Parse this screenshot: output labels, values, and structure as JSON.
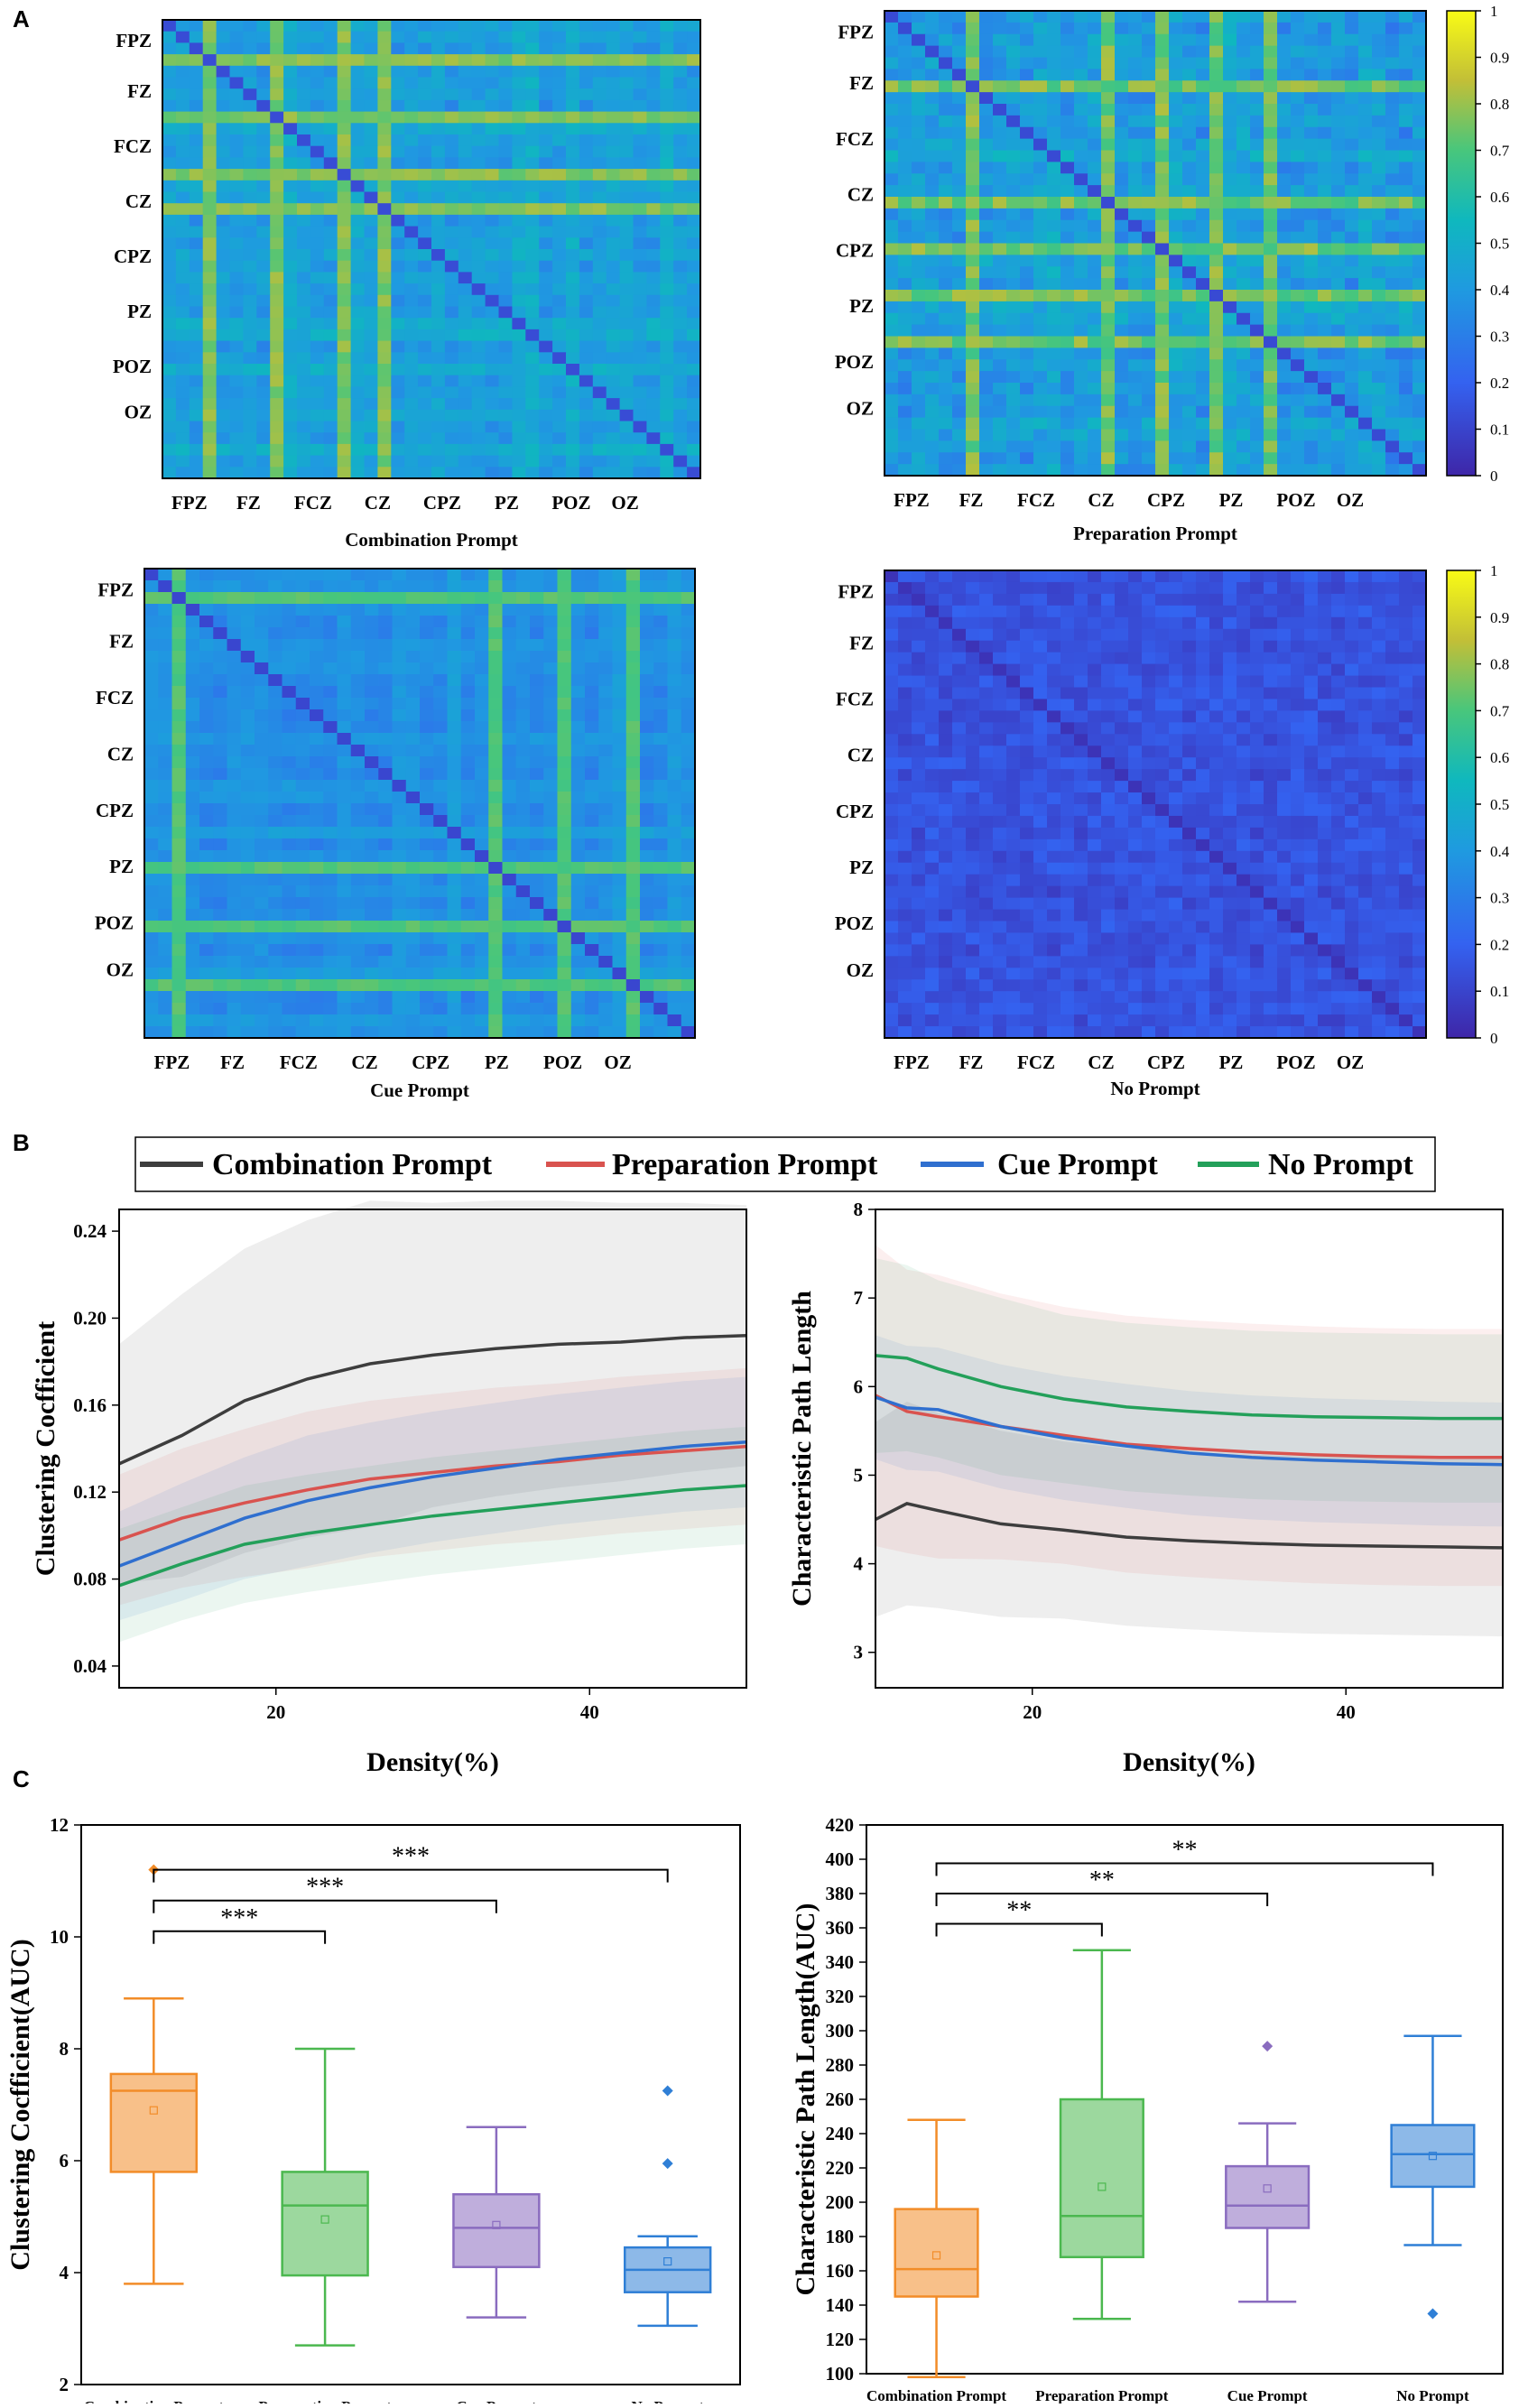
{
  "panels": {
    "a": "A",
    "b": "B",
    "c": "C"
  },
  "colors": {
    "combination": "#3d3d3d",
    "preparation": "#d9534f",
    "cue": "#2f6fcf",
    "none": "#23a05a",
    "box_orange": "#f28c28",
    "box_green": "#4bb84f",
    "box_purple": "#8a6cbf",
    "box_blue": "#2f7fd6"
  },
  "heatmaps": {
    "channel_labels": [
      "FPZ",
      "FZ",
      "FCZ",
      "CZ",
      "CPZ",
      "PZ",
      "POZ",
      "OZ"
    ],
    "colorbar_ticks": [
      "1",
      "0.9",
      "0.8",
      "0.7",
      "0.6",
      "0.5",
      "0.4",
      "0.3",
      "0.2",
      "0.1",
      "0"
    ],
    "titles": [
      "Combination Prompt",
      "Preparation Prompt",
      "Cue Prompt",
      "No Prompt"
    ]
  },
  "chart_data": [
    {
      "type": "line",
      "id": "clustering-density",
      "title": "",
      "xlabel": "Density(%)",
      "ylabel": "Clustering Cocfficient",
      "xlim": [
        10,
        50
      ],
      "ylim": [
        0.03,
        0.25
      ],
      "xticks": [
        "20",
        "40"
      ],
      "yticks": [
        "0.04",
        "0.08",
        "0.12",
        "0.16",
        "0.20",
        "0.24"
      ],
      "x": [
        10,
        14,
        18,
        22,
        26,
        30,
        34,
        38,
        42,
        46,
        50
      ],
      "series": [
        {
          "name": "Combination Prompt",
          "values": [
            0.133,
            0.146,
            0.162,
            0.172,
            0.179,
            0.183,
            0.186,
            0.188,
            0.189,
            0.191,
            0.192
          ],
          "band": [
            0.055,
            0.065,
            0.07,
            0.073,
            0.075,
            0.07,
            0.068,
            0.066,
            0.064,
            0.062,
            0.06
          ]
        },
        {
          "name": "Preparation Prompt",
          "values": [
            0.098,
            0.108,
            0.115,
            0.121,
            0.126,
            0.129,
            0.132,
            0.134,
            0.137,
            0.139,
            0.141
          ],
          "band": [
            0.03,
            0.032,
            0.034,
            0.036,
            0.036,
            0.036,
            0.036,
            0.036,
            0.036,
            0.036,
            0.036
          ]
        },
        {
          "name": "Cue Prompt",
          "values": [
            0.086,
            0.097,
            0.108,
            0.116,
            0.122,
            0.127,
            0.131,
            0.135,
            0.138,
            0.141,
            0.143
          ],
          "band": [
            0.025,
            0.027,
            0.028,
            0.03,
            0.03,
            0.03,
            0.03,
            0.03,
            0.03,
            0.03,
            0.03
          ]
        },
        {
          "name": "No Prompt",
          "values": [
            0.077,
            0.087,
            0.096,
            0.101,
            0.105,
            0.109,
            0.112,
            0.115,
            0.118,
            0.121,
            0.123
          ],
          "band": [
            0.026,
            0.026,
            0.027,
            0.027,
            0.027,
            0.027,
            0.027,
            0.027,
            0.027,
            0.027,
            0.027
          ]
        }
      ]
    },
    {
      "type": "line",
      "id": "path-length-density",
      "title": "",
      "xlabel": "Density(%)",
      "ylabel": "Characteristic Path Length",
      "xlim": [
        10,
        50
      ],
      "ylim": [
        2.6,
        8
      ],
      "xticks": [
        "20",
        "40"
      ],
      "yticks": [
        "3",
        "4",
        "5",
        "6",
        "7",
        "8"
      ],
      "x": [
        10,
        12,
        14,
        18,
        22,
        26,
        30,
        34,
        38,
        42,
        46,
        50
      ],
      "series": [
        {
          "name": "Combination Prompt",
          "values": [
            4.5,
            4.68,
            4.6,
            4.45,
            4.38,
            4.3,
            4.26,
            4.23,
            4.21,
            4.2,
            4.19,
            4.18
          ],
          "band": [
            1.1,
            1.15,
            1.1,
            1.05,
            1.0,
            1.0,
            1.0,
            1.0,
            1.0,
            1.0,
            1.0,
            1.0
          ]
        },
        {
          "name": "Preparation Prompt",
          "values": [
            5.9,
            5.72,
            5.66,
            5.55,
            5.45,
            5.35,
            5.3,
            5.26,
            5.23,
            5.21,
            5.2,
            5.2
          ],
          "band": [
            1.7,
            1.6,
            1.6,
            1.5,
            1.45,
            1.45,
            1.45,
            1.45,
            1.45,
            1.45,
            1.45,
            1.45
          ]
        },
        {
          "name": "Cue Prompt",
          "values": [
            5.88,
            5.76,
            5.74,
            5.55,
            5.42,
            5.33,
            5.25,
            5.2,
            5.17,
            5.15,
            5.13,
            5.12
          ],
          "band": [
            0.7,
            0.7,
            0.7,
            0.7,
            0.7,
            0.7,
            0.7,
            0.7,
            0.7,
            0.7,
            0.7,
            0.7
          ]
        },
        {
          "name": "No Prompt",
          "values": [
            6.35,
            6.32,
            6.2,
            6.0,
            5.86,
            5.77,
            5.72,
            5.68,
            5.66,
            5.65,
            5.64,
            5.64
          ],
          "band": [
            1.1,
            1.05,
            1.0,
            1.0,
            0.95,
            0.95,
            0.95,
            0.95,
            0.95,
            0.95,
            0.95,
            0.95
          ]
        }
      ]
    },
    {
      "type": "box",
      "id": "clustering-auc",
      "title": "",
      "xlabel": "",
      "ylabel": "Clustering Cocfficient(AUC)",
      "ylim": [
        2,
        12
      ],
      "yticks": [
        "2",
        "4",
        "6",
        "8",
        "10",
        "12"
      ],
      "categories": [
        "Combination Prompt",
        "Preparation Prompt",
        "Cue Prompt",
        "No Prompt"
      ],
      "boxes": [
        {
          "min": 3.8,
          "q1": 5.8,
          "median": 7.25,
          "q3": 7.55,
          "max": 8.9,
          "mean": 6.9,
          "outliers": [
            11.2
          ]
        },
        {
          "min": 2.7,
          "q1": 3.95,
          "median": 5.2,
          "q3": 5.8,
          "max": 8.0,
          "mean": 4.95,
          "outliers": []
        },
        {
          "min": 3.2,
          "q1": 4.1,
          "median": 4.8,
          "q3": 5.4,
          "max": 6.6,
          "mean": 4.85,
          "outliers": []
        },
        {
          "min": 3.05,
          "q1": 3.65,
          "median": 4.05,
          "q3": 4.45,
          "max": 4.65,
          "mean": 4.2,
          "outliers": [
            7.25,
            5.95
          ]
        }
      ],
      "significance": [
        {
          "from": 0,
          "to": 1,
          "label": "***"
        },
        {
          "from": 0,
          "to": 2,
          "label": "***"
        },
        {
          "from": 0,
          "to": 3,
          "label": "***"
        }
      ]
    },
    {
      "type": "box",
      "id": "path-length-auc",
      "title": "",
      "xlabel": "",
      "ylabel": "Characteristic Path Length(AUC)",
      "ylim": [
        100,
        420
      ],
      "yticks": [
        "100",
        "120",
        "140",
        "160",
        "180",
        "200",
        "220",
        "240",
        "260",
        "280",
        "300",
        "320",
        "340",
        "360",
        "380",
        "400",
        "420"
      ],
      "categories": [
        "Combination Prompt",
        "Preparation Prompt",
        "Cue Prompt",
        "No Prompt"
      ],
      "boxes": [
        {
          "min": 98,
          "q1": 145,
          "median": 161,
          "q3": 196,
          "max": 248,
          "mean": 169,
          "outliers": []
        },
        {
          "min": 132,
          "q1": 168,
          "median": 192,
          "q3": 260,
          "max": 347,
          "mean": 209,
          "outliers": []
        },
        {
          "min": 142,
          "q1": 185,
          "median": 198,
          "q3": 221,
          "max": 246,
          "mean": 208,
          "outliers": [
            291
          ]
        },
        {
          "min": 175,
          "q1": 209,
          "median": 228,
          "q3": 245,
          "max": 297,
          "mean": 227,
          "outliers": [
            135
          ]
        }
      ],
      "significance": [
        {
          "from": 0,
          "to": 1,
          "label": "**"
        },
        {
          "from": 0,
          "to": 2,
          "label": "**"
        },
        {
          "from": 0,
          "to": 3,
          "label": "**"
        }
      ]
    }
  ]
}
